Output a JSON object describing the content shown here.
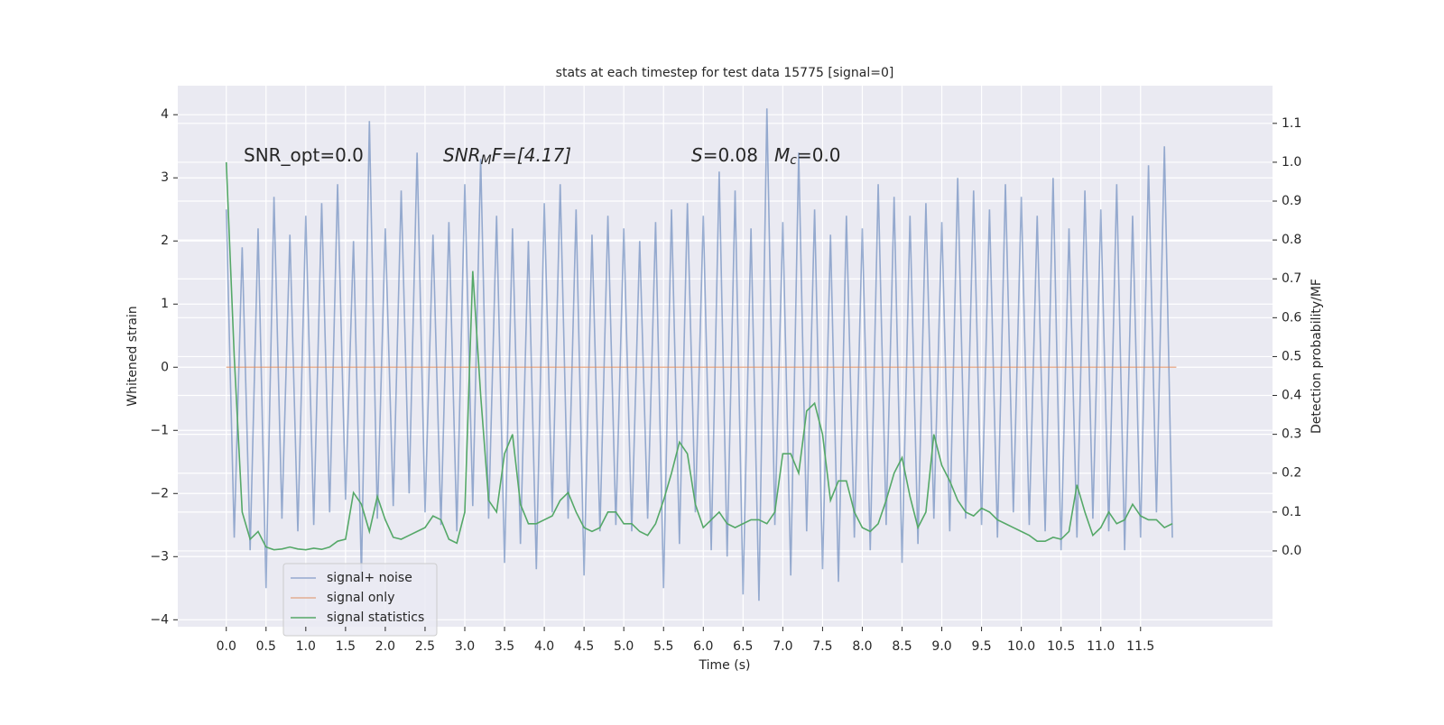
{
  "chart_data": {
    "type": "line",
    "title": "stats at each timestep for test data 15775 [signal=0]",
    "xlabel": "Time (s)",
    "ylabel": "Whitened strain",
    "y2label": "Detection probability/MF",
    "annotations": [
      [
        "SNR_opt=0.0"
      ],
      [
        "SNR",
        "M",
        "F=[4.17]"
      ],
      [
        "S",
        "=0.08"
      ],
      [
        "M",
        "c",
        "=0.0"
      ]
    ],
    "x": [
      0,
      0.1,
      0.2,
      0.3,
      0.4,
      0.5,
      0.6,
      0.7,
      0.8,
      0.9,
      1,
      1.1,
      1.2,
      1.3,
      1.4,
      1.5,
      1.6,
      1.7,
      1.8,
      1.9,
      2,
      2.1,
      2.2,
      2.3,
      2.4,
      2.5,
      2.6,
      2.7,
      2.8,
      2.9,
      3,
      3.1,
      3.2,
      3.3,
      3.4,
      3.5,
      3.6,
      3.7,
      3.8,
      3.9,
      4,
      4.1,
      4.2,
      4.3,
      4.4,
      4.5,
      4.6,
      4.7,
      4.8,
      4.9,
      5,
      5.1,
      5.2,
      5.3,
      5.4,
      5.5,
      5.6,
      5.7,
      5.8,
      5.9,
      6,
      6.1,
      6.2,
      6.3,
      6.4,
      6.5,
      6.6,
      6.7,
      6.8,
      6.9,
      7,
      7.1,
      7.2,
      7.3,
      7.4,
      7.5,
      7.6,
      7.7,
      7.8,
      7.9,
      8,
      8.1,
      8.2,
      8.3,
      8.4,
      8.5,
      8.6,
      8.7,
      8.8,
      8.9,
      9,
      9.1,
      9.2,
      9.3,
      9.4,
      9.5,
      9.6,
      9.7,
      9.8,
      9.9,
      10,
      10.1,
      10.2,
      10.3,
      10.4,
      10.5,
      10.6,
      10.7,
      10.8,
      10.9,
      11,
      11.1,
      11.2,
      11.3,
      11.4,
      11.5,
      11.6,
      11.7,
      11.8,
      11.9
    ],
    "series": [
      {
        "name": "signal+ noise",
        "color": "#4c72b0",
        "opacity": 0.55,
        "values": [
          2.5,
          -2.7,
          1.9,
          -2.9,
          2.2,
          -3.5,
          2.7,
          -2.4,
          2.1,
          -2.6,
          2.4,
          -2.5,
          2.6,
          -2.3,
          2.9,
          -2.1,
          2.0,
          -3.3,
          3.9,
          -2.4,
          2.2,
          -2.2,
          2.8,
          -2.0,
          3.4,
          -2.3,
          2.1,
          -2.5,
          2.3,
          -2.6,
          2.9,
          -2.2,
          3.3,
          -2.4,
          2.4,
          -3.1,
          2.2,
          -2.8,
          2.0,
          -3.2,
          2.6,
          -2.3,
          2.9,
          -2.4,
          2.5,
          -3.3,
          2.1,
          -2.6,
          2.4,
          -2.5,
          2.2,
          -2.6,
          2.0,
          -2.4,
          2.3,
          -3.5,
          2.5,
          -2.8,
          2.6,
          -2.3,
          2.4,
          -2.9,
          3.1,
          -3.0,
          2.8,
          -3.6,
          2.2,
          -3.7,
          4.1,
          -2.5,
          2.3,
          -3.3,
          3.4,
          -2.6,
          2.5,
          -3.2,
          2.1,
          -3.4,
          2.4,
          -2.7,
          2.2,
          -2.9,
          2.9,
          -2.5,
          2.7,
          -3.1,
          2.4,
          -2.8,
          2.6,
          -2.4,
          2.3,
          -2.6,
          3.0,
          -2.4,
          2.8,
          -2.5,
          2.5,
          -2.7,
          2.9,
          -2.3,
          2.7,
          -2.5,
          2.4,
          -2.6,
          3.0,
          -2.9,
          2.2,
          -2.7,
          2.8,
          -2.4,
          2.5,
          -2.6,
          2.9,
          -2.9,
          2.4,
          -2.7,
          3.2,
          -2.3,
          3.5,
          -2.7
        ]
      },
      {
        "name": "signal only",
        "color": "#dd8452",
        "opacity": 0.6,
        "x": [
          0,
          11.95
        ],
        "values": [
          0,
          0
        ]
      },
      {
        "name": "signal statistics",
        "color": "#55a868",
        "opacity": 1,
        "axis": "y2",
        "values": [
          1.0,
          0.5,
          0.1,
          0.03,
          0.05,
          0.01,
          0.003,
          0.005,
          0.01,
          0.005,
          0.003,
          0.007,
          0.004,
          0.01,
          0.025,
          0.03,
          0.15,
          0.12,
          0.05,
          0.14,
          0.08,
          0.035,
          0.03,
          0.04,
          0.05,
          0.06,
          0.09,
          0.08,
          0.03,
          0.02,
          0.1,
          0.72,
          0.4,
          0.13,
          0.1,
          0.25,
          0.3,
          0.12,
          0.07,
          0.07,
          0.08,
          0.09,
          0.13,
          0.15,
          0.1,
          0.06,
          0.05,
          0.06,
          0.1,
          0.1,
          0.07,
          0.07,
          0.05,
          0.04,
          0.07,
          0.13,
          0.2,
          0.28,
          0.25,
          0.12,
          0.06,
          0.08,
          0.1,
          0.07,
          0.06,
          0.07,
          0.08,
          0.08,
          0.07,
          0.1,
          0.25,
          0.25,
          0.2,
          0.36,
          0.38,
          0.3,
          0.13,
          0.18,
          0.18,
          0.1,
          0.06,
          0.05,
          0.07,
          0.13,
          0.2,
          0.24,
          0.14,
          0.06,
          0.1,
          0.3,
          0.22,
          0.18,
          0.13,
          0.1,
          0.09,
          0.11,
          0.1,
          0.08,
          0.07,
          0.06,
          0.05,
          0.04,
          0.025,
          0.025,
          0.035,
          0.03,
          0.05,
          0.17,
          0.1,
          0.04,
          0.06,
          0.1,
          0.07,
          0.08,
          0.12,
          0.09,
          0.08,
          0.08,
          0.06,
          0.07
        ]
      }
    ],
    "xlim": [
      -0.61,
      13.16
    ],
    "xticks": [
      {
        "value": 0,
        "label": "0.0"
      },
      0.5,
      {
        "value": 1,
        "label": "1.0"
      },
      1.5,
      {
        "value": 2,
        "label": "2.0"
      },
      2.5,
      {
        "value": 3,
        "label": "3.0"
      },
      3.5,
      {
        "value": 4,
        "label": "4.0"
      },
      4.5,
      {
        "value": 5,
        "label": "5.0"
      },
      5.5,
      {
        "value": 6,
        "label": "6.0"
      },
      6.5,
      {
        "value": 7,
        "label": "7.0"
      },
      7.5,
      {
        "value": 8,
        "label": "8.0"
      },
      8.5,
      {
        "value": 9,
        "label": "9.0"
      },
      9.5,
      {
        "value": 10,
        "label": "10.0"
      },
      10.5,
      {
        "value": 11,
        "label": "11.0"
      },
      11.5
    ],
    "ylim": [
      -4.11,
      4.46
    ],
    "yticks": [
      {
        "value": -4,
        "label": "−4"
      },
      {
        "value": -3,
        "label": "−3"
      },
      {
        "value": -2,
        "label": "−2"
      },
      {
        "value": -1,
        "label": "−1"
      },
      0,
      1,
      2,
      3,
      4
    ],
    "y2lim": [
      -0.195,
      1.197
    ],
    "y2ticks": [
      {
        "value": 0,
        "label": "0.0"
      },
      0.1,
      0.2,
      0.3,
      0.4,
      0.5,
      0.6,
      0.7,
      0.8,
      0.9,
      {
        "value": 1,
        "label": "1.0"
      },
      1.1
    ],
    "grid": true,
    "legend": "lower left"
  }
}
